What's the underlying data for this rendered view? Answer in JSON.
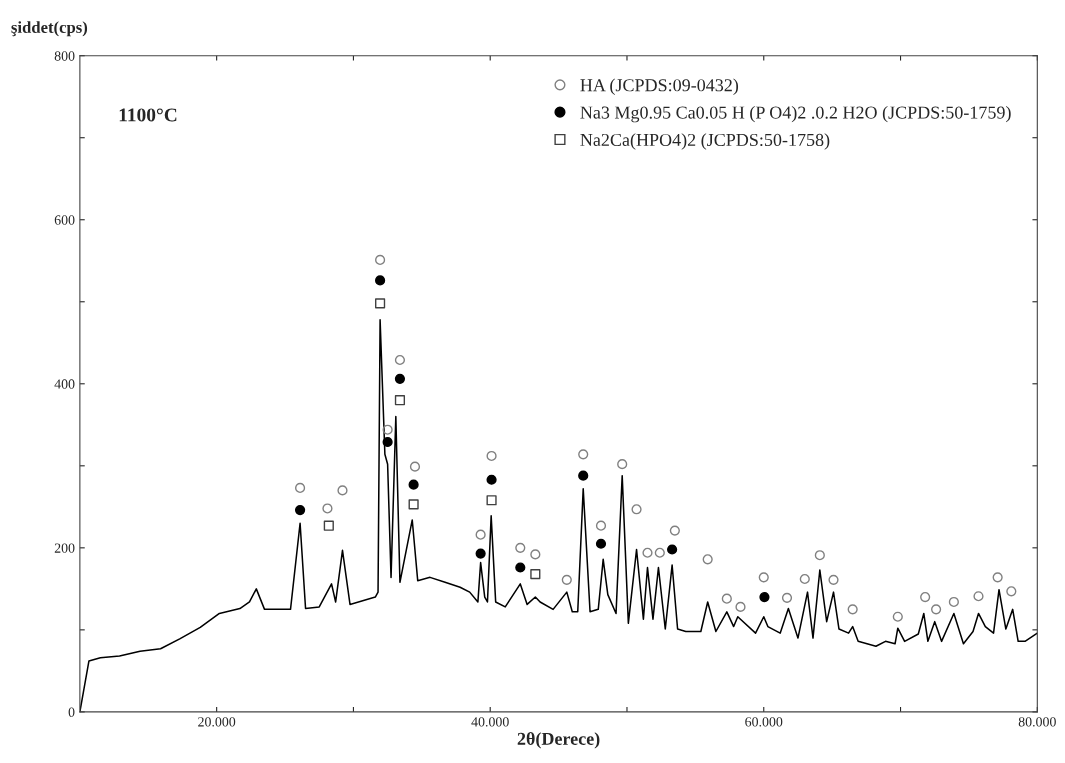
{
  "chart_data": {
    "type": "line",
    "xlabel": "2θ(Derece)",
    "ylabel": "şiddet(cps)",
    "annotations": [
      "1100°C"
    ],
    "xlim": [
      10,
      80
    ],
    "ylim": [
      0,
      800
    ],
    "xticks": [
      {
        "value": 20,
        "label": "20.000"
      },
      {
        "value": 30,
        "label": null
      },
      {
        "value": 40,
        "label": "40.000"
      },
      {
        "value": 50,
        "label": null
      },
      {
        "value": 60,
        "label": "60.000"
      },
      {
        "value": 70,
        "label": null
      },
      {
        "value": 80,
        "label": "80.000"
      }
    ],
    "yticks": [
      0,
      {
        "value": 100,
        "label": null
      },
      200,
      {
        "value": 300,
        "label": null
      },
      400,
      {
        "value": 500,
        "label": null
      },
      600,
      {
        "value": 700,
        "label": null
      },
      800
    ],
    "grid": false,
    "legend": "top right",
    "series": [
      {
        "color": "#000000",
        "x": [
          10,
          10.66,
          11.5,
          12.9,
          14.4,
          15.9,
          17.3,
          18.8,
          20.2,
          21.7,
          22.4,
          22.9,
          23.5,
          25.4,
          26.1,
          26.5,
          27.5,
          28.4,
          28.7,
          29.2,
          29.75,
          31.6,
          31.8,
          31.95,
          32.3,
          32.5,
          32.75,
          33.1,
          33.4,
          34.3,
          34.7,
          35.6,
          36.7,
          37.8,
          38.5,
          39.1,
          39.3,
          39.6,
          39.8,
          40.07,
          40.4,
          41.1,
          42.2,
          42.7,
          43.3,
          43.65,
          44.6,
          45.6,
          46.0,
          46.4,
          46.8,
          47.3,
          47.9,
          48.26,
          48.6,
          49.2,
          49.65,
          50.1,
          50.7,
          51.2,
          51.5,
          51.9,
          52.3,
          52.8,
          53.3,
          53.7,
          54.3,
          55.4,
          55.9,
          56.5,
          57.3,
          57.8,
          58.1,
          59.4,
          60.0,
          60.3,
          61.2,
          61.8,
          62.5,
          63.2,
          63.6,
          64.1,
          64.6,
          65.1,
          65.5,
          66.2,
          66.5,
          66.9,
          68.2,
          68.9,
          69.6,
          69.8,
          70.3,
          71.3,
          71.7,
          72.0,
          72.5,
          73.0,
          73.9,
          74.6,
          75.3,
          75.7,
          76.2,
          76.8,
          77.2,
          77.7,
          78.2,
          78.6,
          79.1,
          80
        ],
        "values": [
          0,
          62,
          66,
          68,
          74,
          77,
          89,
          103,
          120,
          126,
          134,
          150,
          125,
          125,
          230,
          126,
          128,
          156,
          134,
          197,
          131,
          140,
          146,
          478,
          314,
          302,
          164,
          360,
          158,
          234,
          160,
          164,
          158,
          152,
          146,
          134,
          182,
          140,
          134,
          239,
          134,
          128,
          156,
          131,
          140,
          134,
          125,
          146,
          122,
          122,
          272,
          122,
          125,
          186,
          143,
          120,
          288,
          108,
          198,
          113,
          176,
          113,
          176,
          101,
          179,
          101,
          98,
          98,
          134,
          98,
          122,
          104,
          116,
          96,
          116,
          104,
          96,
          126,
          90,
          146,
          90,
          173,
          110,
          146,
          101,
          96,
          104,
          86,
          80,
          86,
          83,
          102,
          86,
          95,
          120,
          86,
          110,
          86,
          120,
          83,
          98,
          120,
          104,
          96,
          149,
          101,
          125,
          86,
          86,
          96
        ]
      },
      {
        "type": "scatter",
        "name": "HA (JCPDS:09-0432)",
        "color": "#808080",
        "marker": "circle",
        "x": [
          26.1,
          28.1,
          29.2,
          31.95,
          32.5,
          33.4,
          34.5,
          39.3,
          40.1,
          42.2,
          43.3,
          45.6,
          46.8,
          48.1,
          49.65,
          50.7,
          51.5,
          52.4,
          53.5,
          55.9,
          57.3,
          58.3,
          60.0,
          61.7,
          63.0,
          64.1,
          65.1,
          66.5,
          69.8,
          71.8,
          72.6,
          73.9,
          75.7,
          77.1,
          78.1
        ],
        "values": [
          273,
          248,
          270,
          551,
          344,
          429,
          299,
          216,
          312,
          200,
          192,
          161,
          314,
          227,
          302,
          247,
          194,
          194,
          221,
          186,
          138,
          128,
          164,
          139,
          162,
          191,
          161,
          125,
          116,
          140,
          125,
          134,
          141,
          164,
          147
        ]
      },
      {
        "type": "scatter",
        "name": "Na3 Mg0.95 Ca0.05 H (P O4)2 .0.2 H2O (JCPDS:50-1759)",
        "color": "#000000",
        "marker": "circle",
        "x": [
          26.1,
          31.95,
          32.5,
          33.4,
          34.4,
          39.3,
          40.1,
          42.2,
          46.8,
          48.1,
          53.3,
          60.05
        ],
        "values": [
          246,
          526,
          329,
          406,
          277,
          193,
          283,
          176,
          288,
          205,
          198,
          140
        ]
      },
      {
        "type": "scatter",
        "name": "Na2Ca(HPO4)2 (JCPDS:50-1758)",
        "color": "#404040",
        "marker": "square",
        "x": [
          28.2,
          31.95,
          33.4,
          34.4,
          40.1,
          43.3
        ],
        "values": [
          227,
          498,
          380,
          253,
          258,
          168
        ]
      }
    ]
  }
}
